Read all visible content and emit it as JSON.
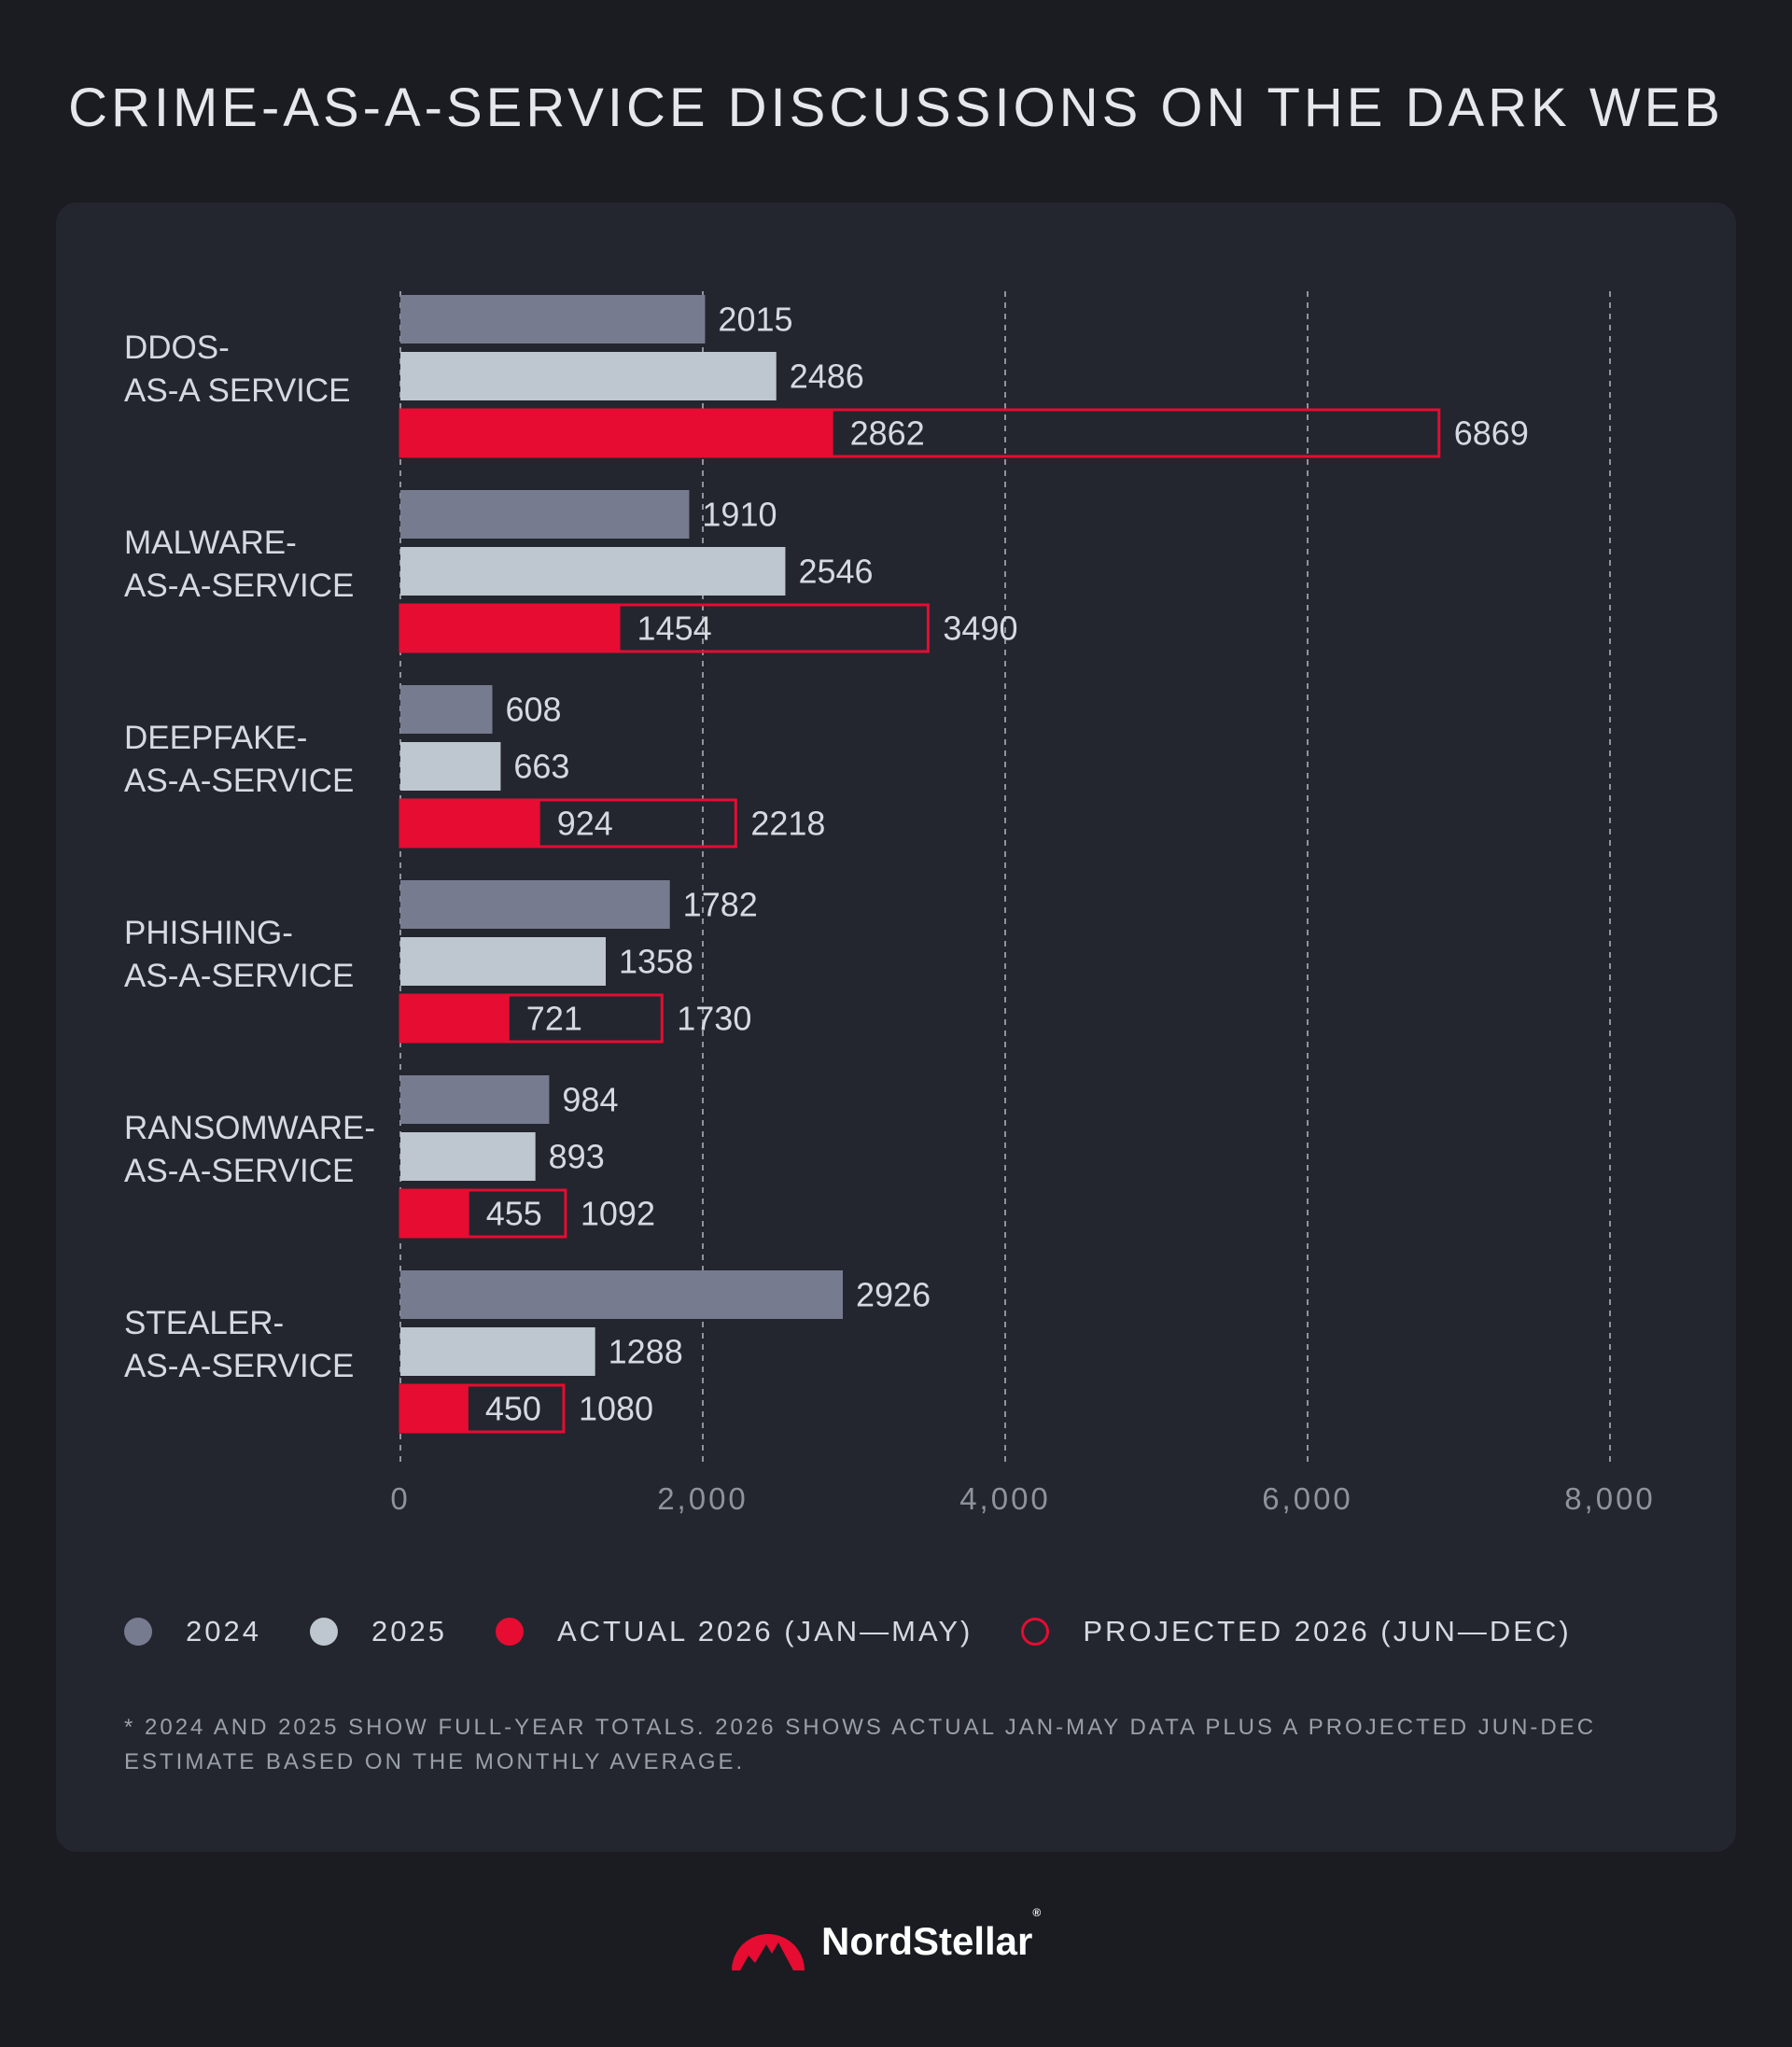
{
  "colors": {
    "bg": "#1a1c22",
    "panel": "#23262e",
    "y2024": "#767b8f",
    "y2025": "#bec6cf",
    "actual2026": "#e60c32",
    "projected2026": "#e60c32",
    "grid": "#8e939c",
    "brand": "#e60c32"
  },
  "legend": {
    "y2024": "2024",
    "y2025": "2025",
    "actual": "ACTUAL 2026 (JAN—MAY)",
    "projected": "PROJECTED 2026 (JUN—DEC)"
  },
  "footnote": "* 2024 AND 2025 SHOW FULL-YEAR TOTALS. 2026 SHOWS ACTUAL JAN-MAY DATA PLUS A PROJECTED JUN-DEC ESTIMATE BASED ON THE MONTHLY AVERAGE.",
  "brand": {
    "name": "NordStellar",
    "reg": "®",
    "logo_icon": "mountain-logo-icon"
  },
  "chart_data": {
    "type": "bar",
    "orientation": "horizontal",
    "title": "CRIME-AS-A-SERVICE DISCUSSIONS ON THE DARK WEB",
    "xlim": [
      0,
      8000
    ],
    "x_ticks": [
      0,
      2000,
      4000,
      6000,
      8000
    ],
    "x_tick_labels": [
      "0",
      "2,000",
      "4,000",
      "6,000",
      "8,000"
    ],
    "grid": true,
    "legend_position": "bottom",
    "categories": [
      [
        "DDOS-",
        "AS-A SERVICE"
      ],
      [
        "MALWARE-",
        "AS-A-SERVICE"
      ],
      [
        "DEEPFAKE-",
        "AS-A-SERVICE"
      ],
      [
        "PHISHING-",
        "AS-A-SERVICE"
      ],
      [
        "RANSOMWARE-",
        "AS-A-SERVICE"
      ],
      [
        "STEALER-",
        "AS-A-SERVICE"
      ]
    ],
    "series": [
      {
        "name": "2024",
        "values": [
          2015,
          1910,
          608,
          1782,
          984,
          2926
        ]
      },
      {
        "name": "2025",
        "values": [
          2486,
          2546,
          663,
          1358,
          893,
          1288
        ]
      },
      {
        "name": "ACTUAL 2026 (JAN—MAY)",
        "values": [
          2862,
          1454,
          924,
          721,
          455,
          450
        ]
      },
      {
        "name": "PROJECTED 2026 (JUN—DEC)",
        "values": [
          6869,
          3490,
          2218,
          1730,
          1092,
          1080
        ]
      }
    ]
  }
}
